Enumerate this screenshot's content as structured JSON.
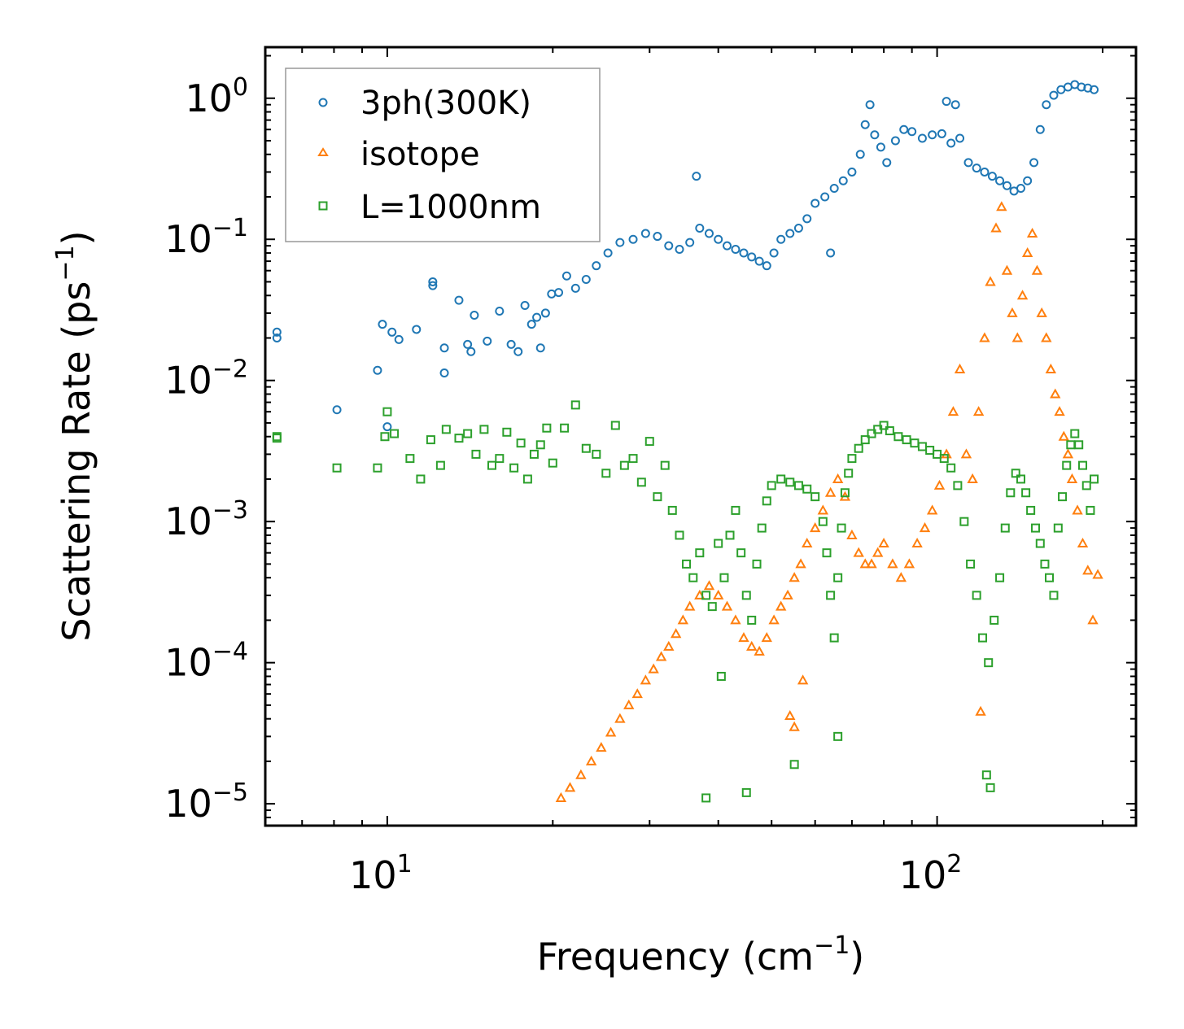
{
  "chart_data": {
    "type": "scatter",
    "xscale": "log",
    "yscale": "log",
    "xlim": [
      6.0,
      230
    ],
    "ylim": [
      7e-06,
      2.3
    ],
    "xlabel": {
      "text": "Frequency (cm",
      "sup": "−1",
      "close": ")"
    },
    "ylabel": {
      "text": "Scattering Rate (ps",
      "sup": "−1",
      "close": ")"
    },
    "x_ticks": [
      {
        "value": 10,
        "base": "10",
        "exp": "1"
      },
      {
        "value": 100,
        "base": "10",
        "exp": "2"
      }
    ],
    "y_ticks": [
      {
        "value": 1,
        "base": "10",
        "exp": "0"
      },
      {
        "value": 0.1,
        "base": "10",
        "exp": "−1"
      },
      {
        "value": 0.01,
        "base": "10",
        "exp": "−2"
      },
      {
        "value": 0.001,
        "base": "10",
        "exp": "−3"
      },
      {
        "value": 0.0001,
        "base": "10",
        "exp": "−4"
      },
      {
        "value": 1e-05,
        "base": "10",
        "exp": "−5"
      }
    ],
    "legend_position": "top-left",
    "series": [
      {
        "name": "3ph(300K)",
        "marker": "circle",
        "color": "#1f77b4",
        "x": [
          6.3,
          6.3,
          8.1,
          9.6,
          9.8,
          10.0,
          10.2,
          10.5,
          11.3,
          12.1,
          12.1,
          12.7,
          12.7,
          13.5,
          14.0,
          14.2,
          14.4,
          15.2,
          16.0,
          16.8,
          17.3,
          17.8,
          18.3,
          18.7,
          19.0,
          19.4,
          19.9,
          20.5,
          21.2,
          22.0,
          23.0,
          24.0,
          25.2,
          26.5,
          28.0,
          29.5,
          31.0,
          32.5,
          34.0,
          35.5,
          37.0,
          38.5,
          40.0,
          41.5,
          43.0,
          44.5,
          46.0,
          47.5,
          49.0,
          50.5,
          52.0,
          54.0,
          56.0,
          58.0,
          60.0,
          62.5,
          65.0,
          67.5,
          70.0,
          72.5,
          74.0,
          75.5,
          77.0,
          79.0,
          81.0,
          84.0,
          87.0,
          90.0,
          94.0,
          98.0,
          102.0,
          106.0,
          108.0,
          110.0,
          114.0,
          118.0,
          122.0,
          126.0,
          130.0,
          134.0,
          138.0,
          142.0,
          146.0,
          150.0,
          154.0,
          158.0,
          163.0,
          168.0,
          173.0,
          178.0,
          183.0,
          188.0,
          193.0,
          36.5,
          64.0,
          104.0
        ],
        "y": [
          0.022,
          0.02,
          0.0062,
          0.0118,
          0.025,
          0.0047,
          0.022,
          0.0195,
          0.023,
          0.05,
          0.047,
          0.0113,
          0.017,
          0.037,
          0.018,
          0.016,
          0.029,
          0.019,
          0.031,
          0.018,
          0.016,
          0.034,
          0.025,
          0.028,
          0.017,
          0.03,
          0.041,
          0.042,
          0.055,
          0.045,
          0.052,
          0.065,
          0.08,
          0.095,
          0.1,
          0.11,
          0.105,
          0.09,
          0.085,
          0.095,
          0.12,
          0.11,
          0.1,
          0.09,
          0.085,
          0.08,
          0.075,
          0.07,
          0.065,
          0.08,
          0.1,
          0.11,
          0.12,
          0.14,
          0.18,
          0.2,
          0.23,
          0.26,
          0.3,
          0.4,
          0.65,
          0.9,
          0.55,
          0.45,
          0.35,
          0.5,
          0.6,
          0.58,
          0.52,
          0.55,
          0.56,
          0.48,
          0.9,
          0.52,
          0.35,
          0.32,
          0.3,
          0.28,
          0.26,
          0.24,
          0.22,
          0.23,
          0.26,
          0.35,
          0.6,
          0.9,
          1.05,
          1.15,
          1.2,
          1.25,
          1.2,
          1.18,
          1.15,
          0.28,
          0.08,
          0.95
        ]
      },
      {
        "name": "isotope",
        "marker": "triangle",
        "color": "#ff7f0e",
        "x": [
          20.7,
          21.5,
          22.5,
          23.5,
          24.5,
          25.5,
          26.5,
          27.5,
          28.5,
          29.5,
          30.5,
          31.5,
          32.5,
          33.5,
          34.5,
          35.5,
          37.0,
          38.5,
          40.0,
          41.5,
          43.0,
          44.5,
          46.0,
          47.5,
          49.0,
          50.5,
          52.0,
          53.5,
          55.0,
          56.5,
          58.0,
          60.0,
          62.0,
          64.0,
          66.0,
          68.0,
          70.0,
          72.0,
          74.0,
          76.0,
          78.0,
          80.0,
          83.0,
          86.0,
          89.0,
          92.0,
          95.0,
          98.0,
          101.0,
          104.0,
          107.0,
          110.0,
          113.0,
          116.0,
          119.0,
          122.0,
          125.0,
          128.0,
          131.0,
          134.0,
          137.0,
          140.0,
          143.0,
          146.0,
          149.0,
          152.0,
          155.0,
          158.0,
          161.0,
          164.0,
          167.0,
          170.0,
          173.0,
          176.0,
          180.0,
          184.0,
          188.0,
          192.0,
          196.0,
          54.0,
          55.0,
          57.0,
          120.0
        ],
        "y": [
          1.1e-05,
          1.3e-05,
          1.6e-05,
          2e-05,
          2.5e-05,
          3.2e-05,
          4e-05,
          5e-05,
          6e-05,
          7.5e-05,
          9e-05,
          0.00011,
          0.00013,
          0.00016,
          0.0002,
          0.00025,
          0.0003,
          0.00035,
          0.0003,
          0.00025,
          0.0002,
          0.00015,
          0.00013,
          0.00012,
          0.00015,
          0.0002,
          0.00025,
          0.0003,
          0.0004,
          0.0005,
          0.0007,
          0.0009,
          0.0012,
          0.0016,
          0.002,
          0.0015,
          0.0008,
          0.0006,
          0.0005,
          0.0005,
          0.0006,
          0.0007,
          0.0005,
          0.0004,
          0.0005,
          0.0007,
          0.0009,
          0.0012,
          0.0018,
          0.003,
          0.006,
          0.012,
          0.003,
          0.002,
          0.006,
          0.02,
          0.05,
          0.12,
          0.17,
          0.06,
          0.03,
          0.02,
          0.04,
          0.08,
          0.11,
          0.06,
          0.03,
          0.02,
          0.012,
          0.008,
          0.006,
          0.004,
          0.003,
          0.002,
          0.0012,
          0.0007,
          0.00045,
          0.0002,
          0.00042,
          4.2e-05,
          3.5e-05,
          7.5e-05,
          4.5e-05
        ]
      },
      {
        "name": "L=1000nm",
        "marker": "square",
        "color": "#2ca02c",
        "x": [
          6.3,
          6.3,
          8.1,
          9.6,
          9.9,
          10.0,
          10.3,
          11.0,
          11.5,
          12.0,
          12.5,
          12.8,
          13.5,
          14.0,
          14.5,
          15.0,
          15.5,
          16.0,
          16.5,
          17.0,
          17.5,
          18.0,
          18.5,
          19.0,
          19.5,
          20.0,
          21.0,
          22.0,
          23.0,
          24.0,
          25.0,
          26.0,
          27.0,
          28.0,
          29.0,
          30.0,
          31.0,
          32.0,
          33.0,
          34.0,
          35.0,
          36.0,
          37.0,
          38.0,
          39.0,
          40.0,
          41.0,
          42.0,
          43.0,
          44.0,
          45.0,
          46.0,
          47.0,
          48.0,
          49.0,
          50.0,
          52.0,
          54.0,
          56.0,
          58.0,
          60.0,
          62.0,
          63.0,
          64.0,
          65.0,
          66.0,
          67.0,
          68.0,
          69.0,
          70.0,
          72.0,
          74.0,
          76.0,
          78.0,
          80.0,
          82.0,
          85.0,
          88.0,
          91.0,
          94.0,
          97.0,
          100.0,
          103.0,
          106.0,
          109.0,
          112.0,
          115.0,
          118.0,
          121.0,
          124.0,
          127.0,
          130.0,
          133.0,
          136.0,
          139.0,
          142.0,
          145.0,
          148.0,
          151.0,
          154.0,
          157.0,
          160.0,
          163.0,
          166.0,
          169.0,
          172.0,
          175.0,
          178.0,
          181.0,
          184.0,
          187.0,
          190.0,
          193.0,
          38.0,
          40.5,
          45.0,
          55.0,
          66.0,
          123.0,
          125.0
        ],
        "y": [
          0.004,
          0.0039,
          0.0024,
          0.0024,
          0.004,
          0.006,
          0.0042,
          0.0028,
          0.002,
          0.0038,
          0.0025,
          0.0045,
          0.0039,
          0.0042,
          0.003,
          0.0045,
          0.0025,
          0.0028,
          0.0043,
          0.0024,
          0.0036,
          0.002,
          0.003,
          0.0035,
          0.0046,
          0.0026,
          0.0046,
          0.0067,
          0.0033,
          0.003,
          0.0022,
          0.0048,
          0.0025,
          0.0028,
          0.0019,
          0.0037,
          0.0015,
          0.0025,
          0.0012,
          0.0008,
          0.0005,
          0.0004,
          0.0006,
          0.0003,
          0.00025,
          0.0007,
          0.0004,
          0.0008,
          0.0012,
          0.0006,
          0.0003,
          0.0002,
          0.0005,
          0.0009,
          0.0014,
          0.0018,
          0.002,
          0.0019,
          0.0018,
          0.0017,
          0.0015,
          0.001,
          0.0006,
          0.0003,
          0.00015,
          0.0004,
          0.0009,
          0.0016,
          0.0022,
          0.0028,
          0.0033,
          0.0038,
          0.0042,
          0.0045,
          0.0048,
          0.0044,
          0.004,
          0.0038,
          0.0036,
          0.0034,
          0.0032,
          0.003,
          0.0028,
          0.0024,
          0.0018,
          0.001,
          0.0005,
          0.0003,
          0.00015,
          0.0001,
          0.0002,
          0.0004,
          0.0009,
          0.0016,
          0.0022,
          0.002,
          0.0016,
          0.0012,
          0.0009,
          0.0007,
          0.0005,
          0.0004,
          0.0003,
          0.0009,
          0.0015,
          0.0025,
          0.0035,
          0.0042,
          0.0035,
          0.0025,
          0.0018,
          0.0012,
          0.002,
          1.1e-05,
          8e-05,
          1.2e-05,
          1.9e-05,
          3e-05,
          1.6e-05,
          1.3e-05
        ]
      }
    ]
  }
}
